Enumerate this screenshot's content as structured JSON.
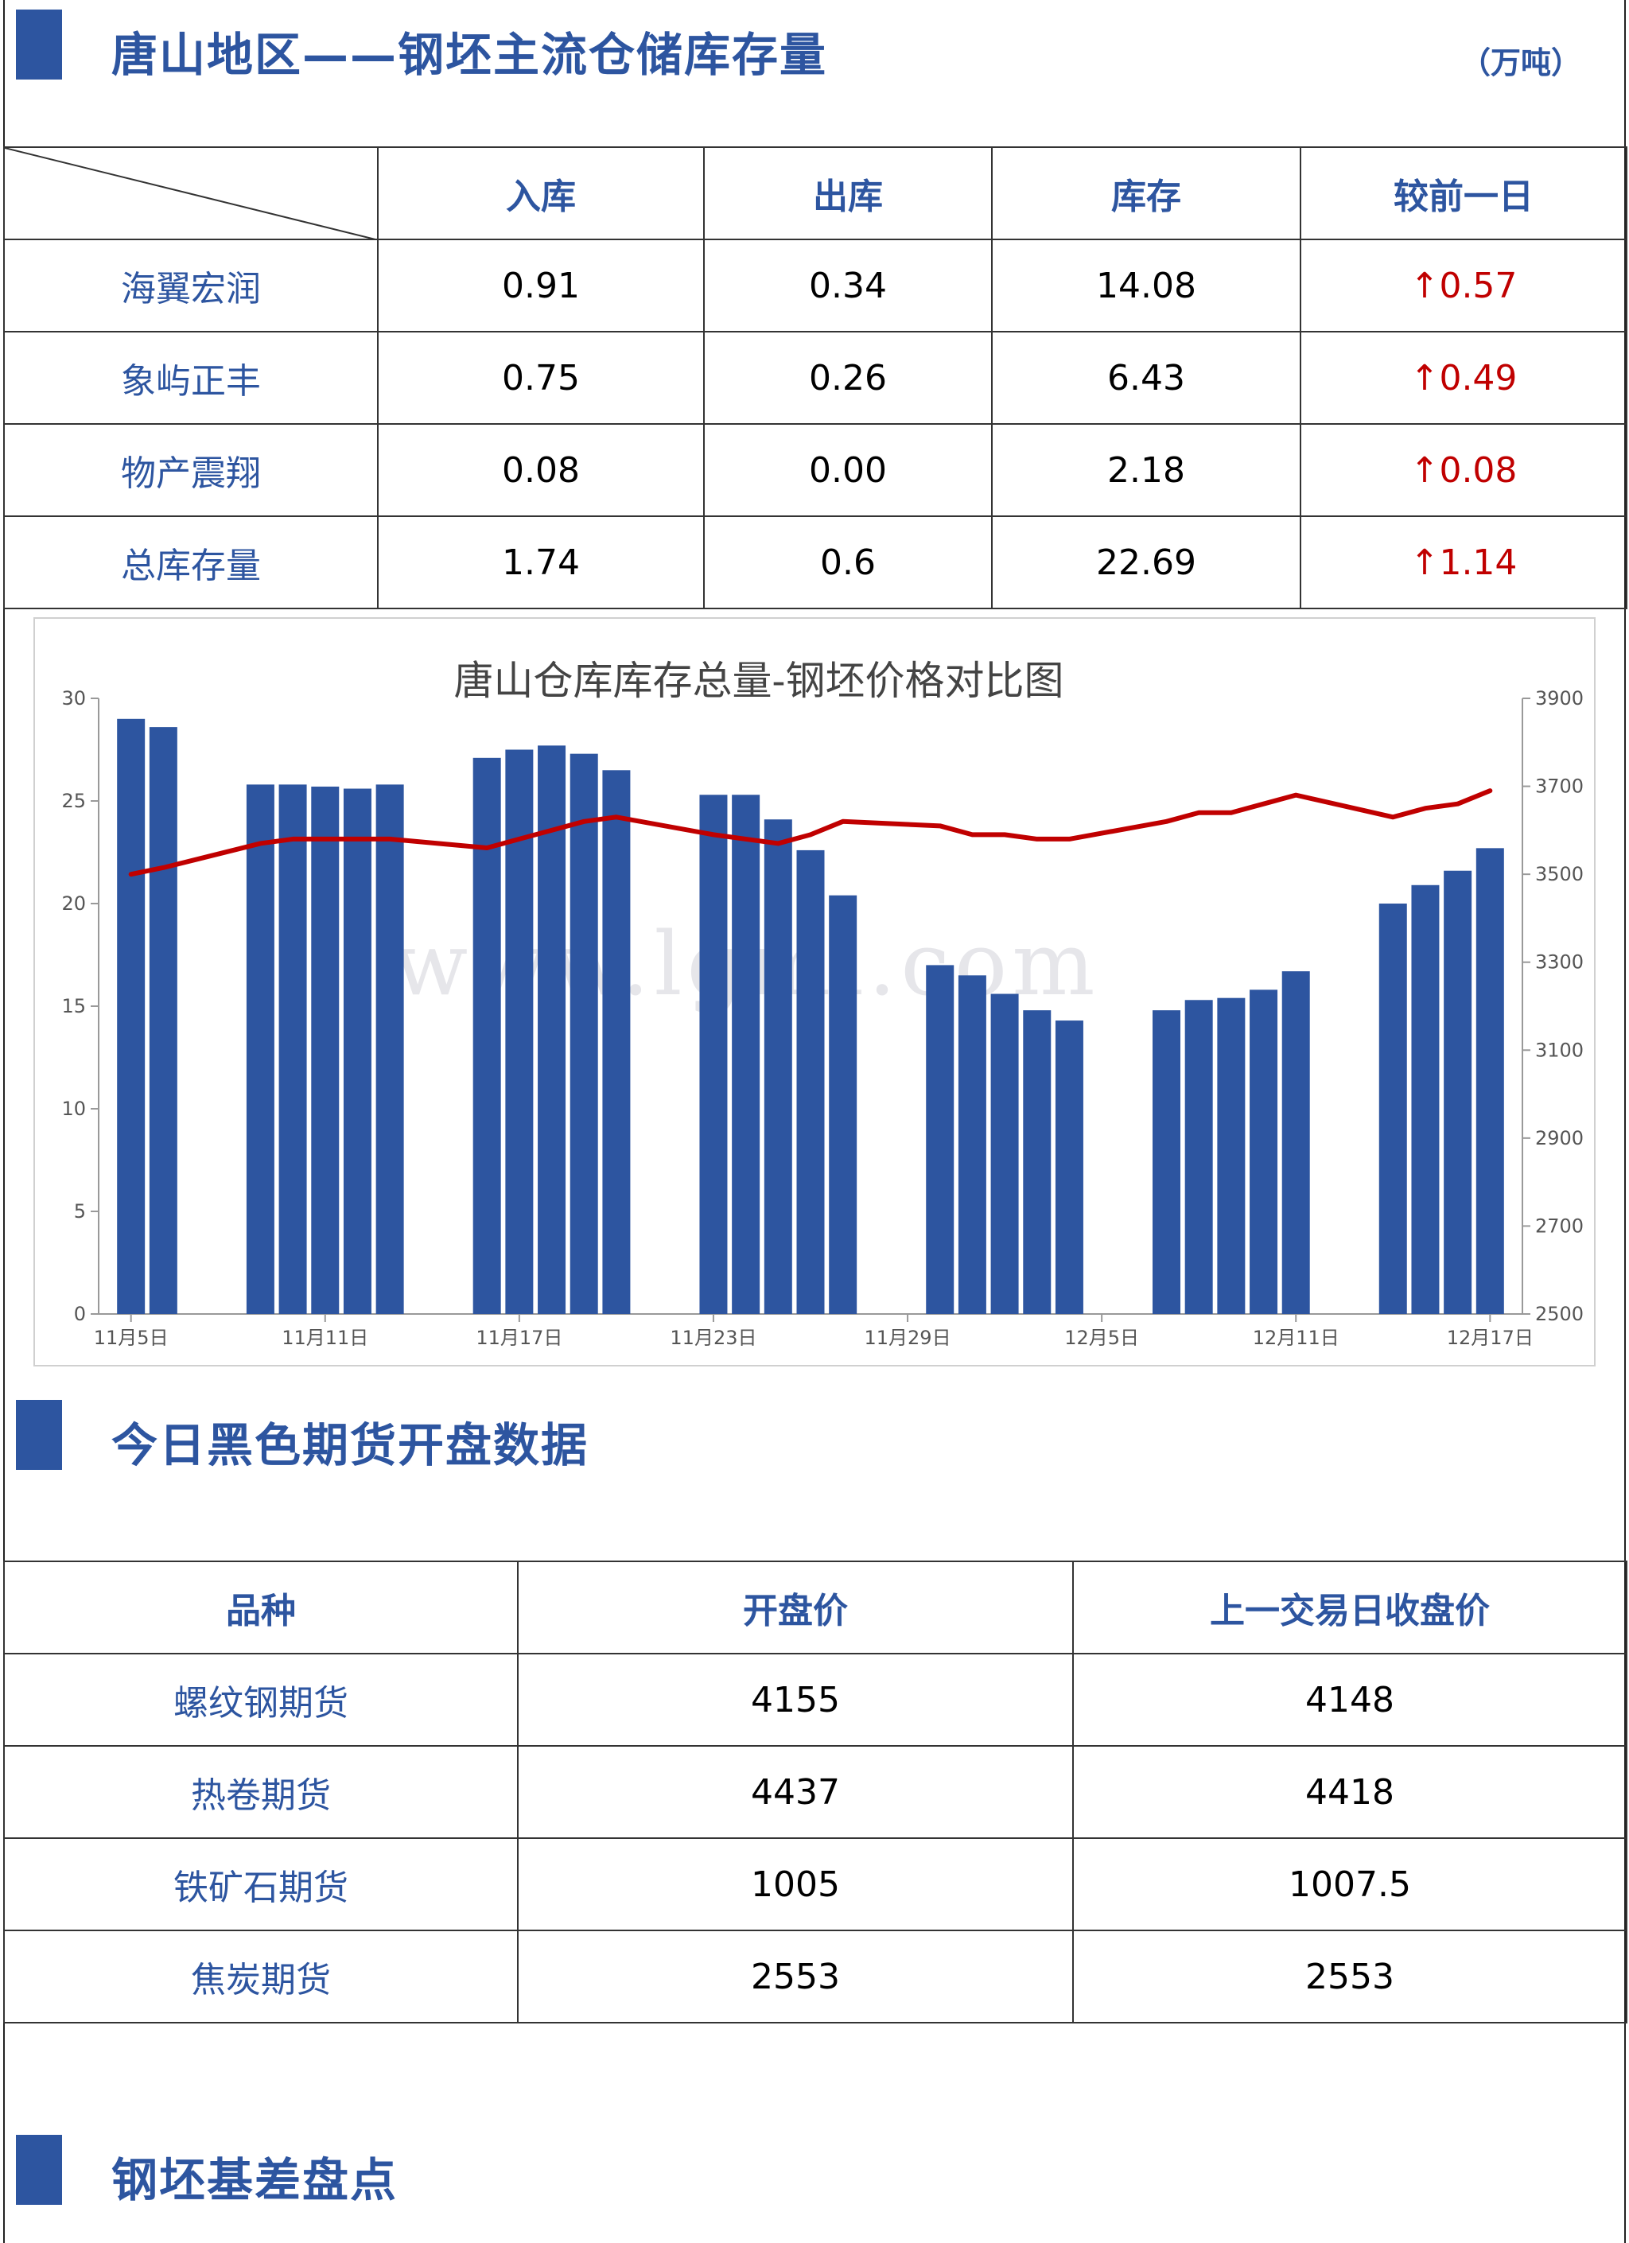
{
  "section1": {
    "title": "唐山地区——钢坯主流仓储库存量",
    "unit": "（万吨）",
    "columns": [
      "入库",
      "出库",
      "库存",
      "较前一日"
    ],
    "rows": [
      {
        "name": "海翼宏润",
        "in": "0.91",
        "out": "0.34",
        "stock": "14.08",
        "change": "↑0.57"
      },
      {
        "name": "象屿正丰",
        "in": "0.75",
        "out": "0.26",
        "stock": "6.43",
        "change": "↑0.49"
      },
      {
        "name": "物产震翔",
        "in": "0.08",
        "out": "0.00",
        "stock": "2.18",
        "change": "↑0.08"
      },
      {
        "name": "总库存量",
        "in": "1.74",
        "out": "0.6",
        "stock": "22.69",
        "change": "↑1.14"
      }
    ]
  },
  "chart_data": {
    "type": "bar",
    "title": "唐山仓库库存总量-钢坯价格对比图",
    "watermark": "www.lgmi.com",
    "colors": {
      "bars": "#2d55a0",
      "line": "#c00000"
    },
    "left_axis": {
      "ylim": [
        0,
        30
      ],
      "ticks": [
        0,
        5,
        10,
        15,
        20,
        25,
        30
      ]
    },
    "right_axis": {
      "ylim": [
        2500,
        3900
      ],
      "ticks": [
        2500,
        2700,
        2900,
        3100,
        3300,
        3500,
        3700,
        3900
      ]
    },
    "x_tick_labels": [
      "11月5日",
      "11月11日",
      "11月17日",
      "11月23日",
      "11月29日",
      "12月5日",
      "12月11日",
      "12月17日"
    ],
    "x_tick_days": [
      0,
      6,
      12,
      18,
      24,
      30,
      36,
      42
    ],
    "x_range_days": [
      -1,
      43
    ],
    "series": [
      {
        "kind": "bar",
        "axis": "left",
        "points": [
          {
            "day": 0,
            "value": 29.0
          },
          {
            "day": 1,
            "value": 28.6
          },
          {
            "day": 4,
            "value": 25.8
          },
          {
            "day": 5,
            "value": 25.8
          },
          {
            "day": 6,
            "value": 25.7
          },
          {
            "day": 7,
            "value": 25.6
          },
          {
            "day": 8,
            "value": 25.8
          },
          {
            "day": 11,
            "value": 27.1
          },
          {
            "day": 12,
            "value": 27.5
          },
          {
            "day": 13,
            "value": 27.7
          },
          {
            "day": 14,
            "value": 27.3
          },
          {
            "day": 15,
            "value": 26.5
          },
          {
            "day": 18,
            "value": 25.3
          },
          {
            "day": 19,
            "value": 25.3
          },
          {
            "day": 20,
            "value": 24.1
          },
          {
            "day": 21,
            "value": 22.6
          },
          {
            "day": 22,
            "value": 20.4
          },
          {
            "day": 25,
            "value": 17.0
          },
          {
            "day": 26,
            "value": 16.5
          },
          {
            "day": 27,
            "value": 15.6
          },
          {
            "day": 28,
            "value": 14.8
          },
          {
            "day": 29,
            "value": 14.3
          },
          {
            "day": 32,
            "value": 14.8
          },
          {
            "day": 33,
            "value": 15.3
          },
          {
            "day": 34,
            "value": 15.4
          },
          {
            "day": 35,
            "value": 15.8
          },
          {
            "day": 36,
            "value": 16.7
          },
          {
            "day": 39,
            "value": 20.0
          },
          {
            "day": 40,
            "value": 20.9
          },
          {
            "day": 41,
            "value": 21.6
          },
          {
            "day": 42,
            "value": 22.7
          }
        ]
      },
      {
        "kind": "line",
        "axis": "right",
        "points": [
          {
            "day": 0,
            "value": 3500
          },
          {
            "day": 1,
            "value": 3515
          },
          {
            "day": 4,
            "value": 3570
          },
          {
            "day": 5,
            "value": 3580
          },
          {
            "day": 6,
            "value": 3580
          },
          {
            "day": 7,
            "value": 3580
          },
          {
            "day": 8,
            "value": 3580
          },
          {
            "day": 11,
            "value": 3560
          },
          {
            "day": 12,
            "value": 3580
          },
          {
            "day": 13,
            "value": 3600
          },
          {
            "day": 14,
            "value": 3620
          },
          {
            "day": 15,
            "value": 3630
          },
          {
            "day": 18,
            "value": 3590
          },
          {
            "day": 19,
            "value": 3580
          },
          {
            "day": 20,
            "value": 3570
          },
          {
            "day": 21,
            "value": 3590
          },
          {
            "day": 22,
            "value": 3620
          },
          {
            "day": 25,
            "value": 3610
          },
          {
            "day": 26,
            "value": 3590
          },
          {
            "day": 27,
            "value": 3590
          },
          {
            "day": 28,
            "value": 3580
          },
          {
            "day": 29,
            "value": 3580
          },
          {
            "day": 32,
            "value": 3620
          },
          {
            "day": 33,
            "value": 3640
          },
          {
            "day": 34,
            "value": 3640
          },
          {
            "day": 35,
            "value": 3660
          },
          {
            "day": 36,
            "value": 3680
          },
          {
            "day": 39,
            "value": 3630
          },
          {
            "day": 40,
            "value": 3650
          },
          {
            "day": 41,
            "value": 3660
          },
          {
            "day": 42,
            "value": 3690
          }
        ]
      }
    ]
  },
  "section2": {
    "title": "今日黑色期货开盘数据",
    "columns": [
      "品种",
      "开盘价",
      "上一交易日收盘价"
    ],
    "rows": [
      {
        "name": "螺纹钢期货",
        "open": "4155",
        "prev": "4148"
      },
      {
        "name": "热卷期货",
        "open": "4437",
        "prev": "4418"
      },
      {
        "name": "铁矿石期货",
        "open": "1005",
        "prev": "1007.5"
      },
      {
        "name": "焦炭期货",
        "open": "2553",
        "prev": "2553"
      }
    ]
  },
  "section3": {
    "title": "钢坯基差盘点"
  }
}
